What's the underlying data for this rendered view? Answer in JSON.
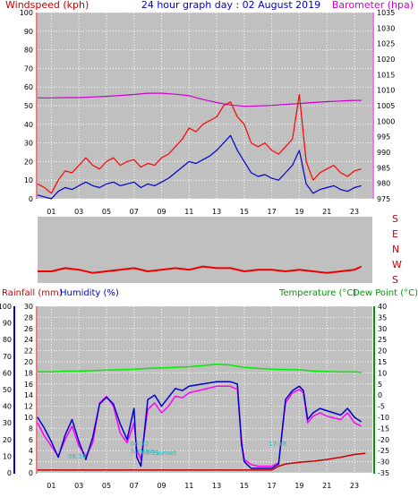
{
  "header": {
    "left_label": "Windspeed (kph)",
    "title": "24 hour graph day : 02 August 2019",
    "right_label": "Barometer (hpa)"
  },
  "direction_labels": [
    "S",
    "E",
    "N",
    "W",
    "S"
  ],
  "bottom_header": {
    "rainfall_label": "Rainfall (mm)",
    "humidity_label": "Humidity (%)",
    "temperature_label": "Temperature (°C)",
    "dewpoint_label": "Dew Point (°C)"
  },
  "annotations": {
    "sunrise": "Sunrise",
    "sunrise_time": "06:24",
    "sunset": "Sunset",
    "times": [
      "06:22",
      "06:31",
      "17:18"
    ]
  },
  "colors": {
    "plot_bg": "#c0c0c0",
    "grid": "#ffffff",
    "wind_gust": "#ff0000",
    "wind_avg": "#0000cc",
    "barometer": "#cc00cc",
    "direction": "#ee0000",
    "humidity": "#0000cc",
    "rain": "#cc0000",
    "temperature": "#ff00ff",
    "dewpoint": "#0000cc",
    "temp_axis": "#009900",
    "rain_axis_text": "#cc0000"
  },
  "chart_data": [
    {
      "type": "line",
      "title": "24 hour graph day : 02 August 2019",
      "x_ticks": [
        "01",
        "03",
        "05",
        "07",
        "09",
        "11",
        "13",
        "15",
        "17",
        "19",
        "21",
        "23"
      ],
      "ylabel": "Windspeed (kph)",
      "ylim": [
        0,
        100
      ],
      "y_ticks": [
        0,
        10,
        20,
        30,
        40,
        50,
        60,
        70,
        80,
        90,
        100
      ],
      "y2label": "Barometer (hpa)",
      "y2lim": [
        975,
        1035
      ],
      "y2_ticks": [
        975,
        980,
        985,
        990,
        995,
        1000,
        1005,
        1010,
        1015,
        1020,
        1025,
        1030,
        1035
      ],
      "grid": true,
      "series": [
        {
          "name": "Windspeed (kph)",
          "axis": "left",
          "x": [
            0,
            0.5,
            1,
            1.5,
            2,
            2.5,
            3,
            3.5,
            4,
            4.5,
            5,
            5.5,
            6,
            6.5,
            7,
            7.5,
            8,
            8.5,
            9,
            9.5,
            10,
            10.5,
            11,
            11.5,
            12,
            12.5,
            13,
            13.5,
            14,
            14.5,
            15,
            15.5,
            16,
            16.5,
            17,
            17.5,
            18,
            18.5,
            19,
            19.5,
            20,
            20.5,
            21,
            21.5,
            22,
            22.5,
            23,
            23.5
          ],
          "values": [
            8,
            6,
            3,
            10,
            15,
            14,
            18,
            22,
            18,
            16,
            20,
            22,
            18,
            20,
            21,
            17,
            19,
            18,
            22,
            24,
            28,
            32,
            38,
            36,
            40,
            42,
            44,
            50,
            52,
            44,
            40,
            30,
            28,
            30,
            26,
            24,
            28,
            32,
            56,
            20,
            10,
            14,
            16,
            18,
            14,
            12,
            15,
            16
          ]
        },
        {
          "name": "Average wind",
          "axis": "left",
          "x": [
            0,
            0.5,
            1,
            1.5,
            2,
            2.5,
            3,
            3.5,
            4,
            4.5,
            5,
            5.5,
            6,
            6.5,
            7,
            7.5,
            8,
            8.5,
            9,
            9.5,
            10,
            10.5,
            11,
            11.5,
            12,
            12.5,
            13,
            13.5,
            14,
            14.5,
            15,
            15.5,
            16,
            16.5,
            17,
            17.5,
            18,
            18.5,
            19,
            19.5,
            20,
            20.5,
            21,
            21.5,
            22,
            22.5,
            23,
            23.5
          ],
          "values": [
            2,
            1,
            0,
            4,
            6,
            5,
            7,
            9,
            7,
            6,
            8,
            9,
            7,
            8,
            9,
            6,
            8,
            7,
            9,
            11,
            14,
            17,
            20,
            19,
            21,
            23,
            26,
            30,
            34,
            26,
            20,
            14,
            12,
            13,
            11,
            10,
            14,
            18,
            26,
            8,
            3,
            5,
            6,
            7,
            5,
            4,
            6,
            7
          ]
        },
        {
          "name": "Barometer (hpa)",
          "axis": "right",
          "x": [
            0,
            1,
            2,
            3,
            4,
            5,
            6,
            7,
            8,
            9,
            10,
            11,
            12,
            13,
            14,
            15,
            16,
            17,
            18,
            19,
            20,
            21,
            22,
            23,
            23.5
          ],
          "values": [
            1007.5,
            1007.5,
            1007.6,
            1007.6,
            1007.8,
            1008.0,
            1008.3,
            1008.6,
            1009.0,
            1009.0,
            1008.7,
            1008.2,
            1007.0,
            1006.0,
            1005.2,
            1004.8,
            1004.9,
            1005.1,
            1005.4,
            1005.7,
            1006.0,
            1006.3,
            1006.5,
            1006.7,
            1006.7
          ]
        }
      ]
    },
    {
      "type": "scatter",
      "categories": [
        "S",
        "E",
        "N",
        "W",
        "S"
      ],
      "series": [
        {
          "name": "Wind direction",
          "x": [
            0,
            1,
            2,
            3,
            4,
            5,
            6,
            7,
            8,
            9,
            10,
            11,
            12,
            13,
            14,
            15,
            16,
            17,
            18,
            19,
            20,
            21,
            22,
            23,
            23.5
          ],
          "values": [
            10,
            10,
            14,
            12,
            8,
            10,
            12,
            14,
            10,
            12,
            14,
            12,
            16,
            14,
            14,
            10,
            12,
            12,
            10,
            12,
            10,
            8,
            10,
            12,
            16
          ]
        }
      ]
    },
    {
      "type": "line",
      "x_ticks": [
        "01",
        "03",
        "05",
        "07",
        "09",
        "11",
        "13",
        "15",
        "17",
        "19",
        "21",
        "23"
      ],
      "rain_ylim": [
        0,
        30
      ],
      "rain_ticks": [
        0,
        2,
        4,
        6,
        8,
        10,
        12,
        14,
        16,
        18,
        20,
        22,
        24,
        26,
        28,
        30
      ],
      "humidity_ylim": [
        0,
        100
      ],
      "humidity_ticks": [
        0,
        10,
        20,
        30,
        40,
        50,
        60,
        70,
        80,
        90,
        100
      ],
      "temp_ylim": [
        -35,
        40
      ],
      "temp_ticks": [
        40,
        35,
        30,
        25,
        20,
        15,
        10,
        5,
        0,
        -5,
        -10,
        -15,
        -20,
        -25,
        -30,
        -35
      ],
      "grid": true,
      "series": [
        {
          "name": "Rainfall (mm)",
          "axis": "rain",
          "x": [
            0,
            17.0,
            17.5,
            18,
            19,
            20,
            21,
            22,
            23,
            23.8
          ],
          "values": [
            0.5,
            0.5,
            1.2,
            1.6,
            1.9,
            2.1,
            2.4,
            2.8,
            3.3,
            3.5
          ]
        },
        {
          "name": "Humidity (%)",
          "axis": "humidity",
          "x": [
            0,
            0.5,
            1,
            1.5,
            2,
            2.5,
            3,
            3.5,
            4,
            4.5,
            5,
            5.5,
            6,
            6.5,
            7,
            7.2,
            7.5,
            8,
            8.5,
            9,
            9.5,
            10,
            10.5,
            11,
            12,
            13,
            14,
            14.5,
            14.8,
            15,
            15.5,
            16,
            16.5,
            17,
            17.5,
            18,
            18.5,
            19,
            19.3,
            19.6,
            20,
            20.5,
            21,
            21.5,
            22,
            22.5,
            23,
            23.5
          ],
          "values": [
            30,
            22,
            16,
            10,
            20,
            28,
            16,
            10,
            18,
            42,
            46,
            40,
            24,
            18,
            30,
            14,
            8,
            38,
            42,
            36,
            40,
            46,
            45,
            48,
            50,
            52,
            52,
            50,
            20,
            8,
            5,
            4,
            4,
            4,
            6,
            42,
            48,
            50,
            48,
            30,
            34,
            36,
            34,
            33,
            32,
            36,
            30,
            28
          ]
        },
        {
          "name": "Temperature (°C)",
          "axis": "temp",
          "x": [
            0,
            1,
            2,
            3,
            4,
            5,
            6,
            7,
            8,
            9,
            10,
            11,
            12,
            13,
            14,
            15,
            16,
            17,
            18,
            19,
            20,
            21,
            22,
            23,
            23.5
          ],
          "values": [
            10.5,
            10.5,
            10.8,
            10.8,
            11.0,
            11.3,
            11.4,
            11.6,
            12.0,
            12.2,
            12.5,
            12.8,
            13.3,
            13.9,
            13.5,
            12.5,
            12.0,
            11.7,
            11.5,
            11.4,
            10.8,
            10.6,
            10.4,
            10.5,
            10.2
          ]
        },
        {
          "name": "Dew Point (°C)",
          "axis": "temp",
          "x": [
            0,
            0.5,
            1,
            1.5,
            2,
            2.5,
            3,
            3.5,
            4,
            4.5,
            5,
            5.5,
            6,
            6.5,
            7,
            7.2,
            7.5,
            8,
            8.5,
            9,
            9.5,
            10,
            10.5,
            11,
            12,
            13,
            14,
            14.5,
            14.8,
            15,
            15.5,
            16,
            16.5,
            17,
            17.5,
            18,
            18.5,
            19,
            19.3,
            19.6,
            20,
            20.5,
            21,
            21.5,
            22,
            22.5,
            23,
            23.5
          ],
          "values": [
            -10,
            -15,
            -21,
            -28,
            -18,
            -11,
            -21,
            -29,
            -19,
            -4,
            -1,
            -4,
            -13,
            -20,
            -6,
            -28,
            -32,
            -2,
            0,
            -5,
            -1,
            3,
            2,
            4,
            5,
            6,
            6,
            5,
            -22,
            -30,
            -33,
            -33,
            -33,
            -33,
            -31,
            -2,
            2,
            4,
            2,
            -11,
            -8,
            -6,
            -7,
            -8,
            -9,
            -6,
            -10,
            -12
          ]
        }
      ]
    }
  ]
}
